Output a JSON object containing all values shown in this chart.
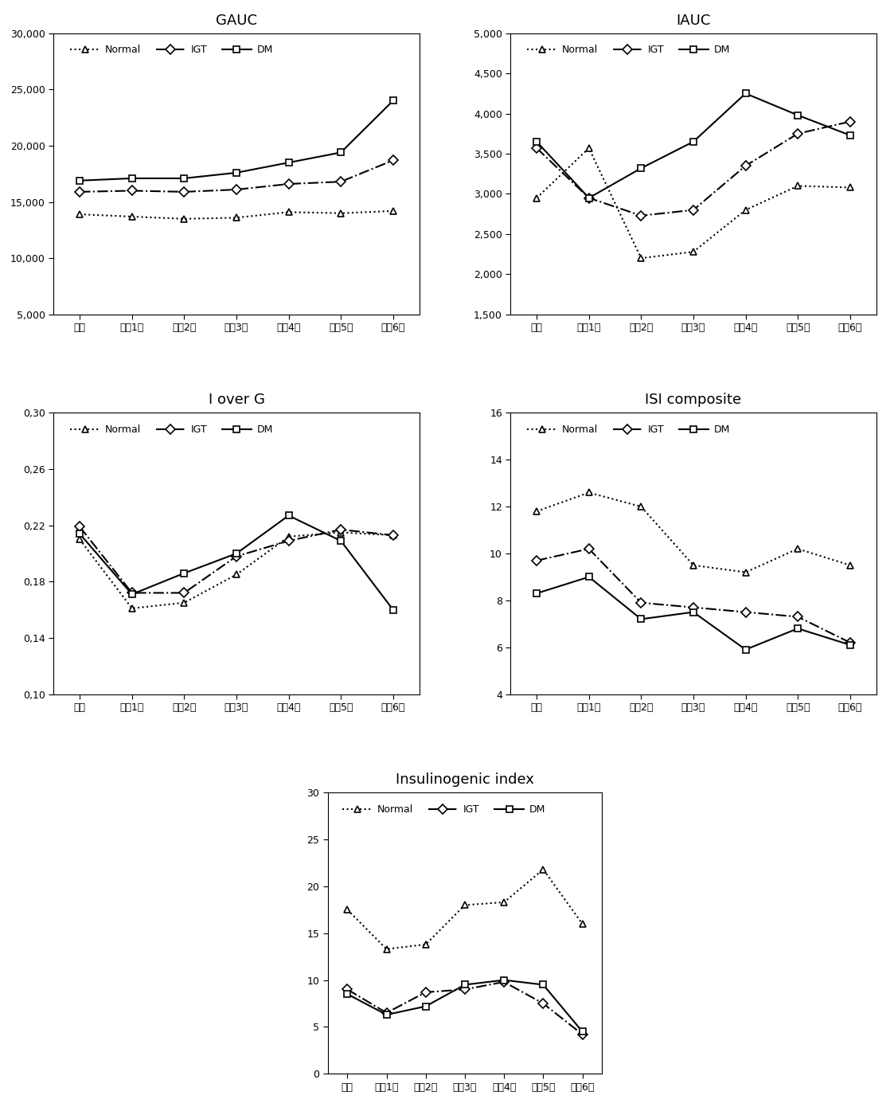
{
  "x_labels": [
    "기초",
    "추적1기",
    "추적2기",
    "추적3기",
    "추적4기",
    "추적5기",
    "추적6기"
  ],
  "gauc": {
    "title": "GAUC",
    "normal": [
      13900,
      13700,
      13500,
      13600,
      14100,
      14000,
      14200
    ],
    "igt": [
      15900,
      16000,
      15900,
      16100,
      16600,
      16800,
      18700
    ],
    "dm": [
      16900,
      17100,
      17100,
      17600,
      18500,
      19400,
      24000
    ],
    "ylim": [
      5000,
      30000
    ],
    "yticks": [
      5000,
      10000,
      15000,
      20000,
      25000,
      30000
    ],
    "yticklabels": [
      "5,000",
      "10,000",
      "15,000",
      "20,000",
      "25,000",
      "30,000"
    ]
  },
  "iauc": {
    "title": "IAUC",
    "normal": [
      2950,
      3570,
      2200,
      2280,
      2800,
      3100,
      3080
    ],
    "igt": [
      3570,
      2950,
      2730,
      2800,
      3350,
      3750,
      3900
    ],
    "dm": [
      3650,
      2950,
      3320,
      3650,
      4250,
      3980,
      3730
    ],
    "ylim": [
      1500,
      5000
    ],
    "yticks": [
      1500,
      2000,
      2500,
      3000,
      3500,
      4000,
      4500,
      5000
    ],
    "yticklabels": [
      "1,500",
      "2,000",
      "2,500",
      "3,000",
      "3,500",
      "4,000",
      "4,500",
      "5,000"
    ]
  },
  "ioverg": {
    "title": "I over G",
    "normal": [
      0.21,
      0.161,
      0.165,
      0.185,
      0.212,
      0.215,
      0.213
    ],
    "igt": [
      0.219,
      0.172,
      0.172,
      0.198,
      0.209,
      0.217,
      0.213
    ],
    "dm": [
      0.214,
      0.171,
      0.186,
      0.2,
      0.227,
      0.209,
      0.16
    ],
    "ylim": [
      0.1,
      0.3
    ],
    "yticks": [
      0.1,
      0.14,
      0.18,
      0.22,
      0.26,
      0.3
    ],
    "yticklabels": [
      "0,10",
      "0,14",
      "0,18",
      "0,22",
      "0,26",
      "0,30"
    ]
  },
  "isi": {
    "title": "ISI composite",
    "normal": [
      11.8,
      12.6,
      12.0,
      9.5,
      9.2,
      10.2,
      9.5
    ],
    "igt": [
      9.7,
      10.2,
      7.9,
      7.7,
      7.5,
      7.3,
      6.2
    ],
    "dm": [
      8.3,
      9.0,
      7.2,
      7.5,
      5.9,
      6.8,
      6.1
    ],
    "ylim": [
      4,
      16
    ],
    "yticks": [
      4,
      6,
      8,
      10,
      12,
      14,
      16
    ],
    "yticklabels": [
      "4",
      "6",
      "8",
      "10",
      "12",
      "14",
      "16"
    ]
  },
  "insulinogenic": {
    "title": "Insulinogenic index",
    "normal": [
      17.5,
      13.3,
      13.8,
      18.0,
      18.3,
      21.8,
      16.0
    ],
    "igt": [
      9.0,
      6.5,
      8.7,
      9.0,
      9.8,
      7.5,
      4.2
    ],
    "dm": [
      8.5,
      6.3,
      7.2,
      9.5,
      10.0,
      9.5,
      4.5
    ],
    "ylim": [
      0,
      30
    ],
    "yticks": [
      0,
      5,
      10,
      15,
      20,
      25,
      30
    ],
    "yticklabels": [
      "0",
      "5",
      "10",
      "15",
      "20",
      "25",
      "30"
    ]
  },
  "normal_style": {
    "color": "#000000",
    "linestyle": "dotted",
    "marker": "^",
    "linewidth": 1.5,
    "markersize": 6
  },
  "igt_style": {
    "color": "#000000",
    "linestyle": "dashdot",
    "marker": "D",
    "linewidth": 1.5,
    "markersize": 6
  },
  "dm_style": {
    "color": "#000000",
    "linestyle": "solid",
    "marker": "s",
    "linewidth": 1.5,
    "markersize": 6
  },
  "bg_color": "#ffffff",
  "fig_bg_color": "#f0f0f0"
}
